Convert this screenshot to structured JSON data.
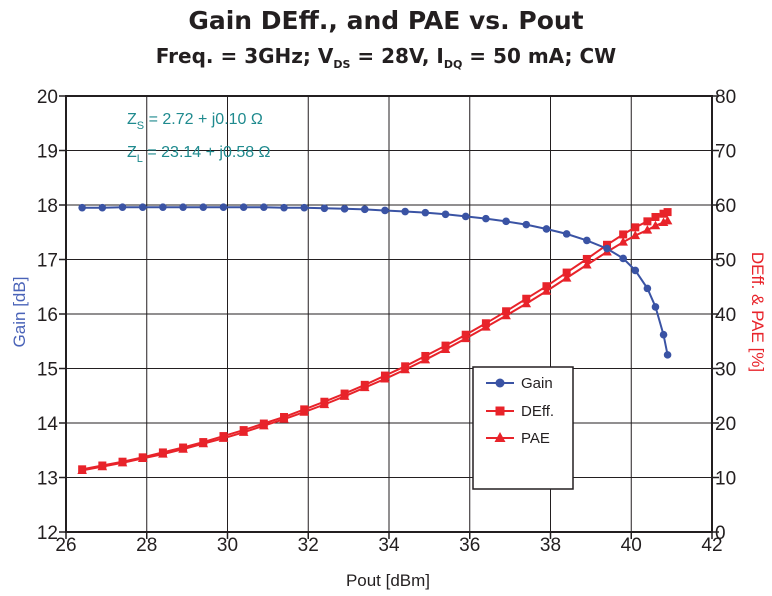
{
  "chart_data": {
    "type": "line",
    "title": "Gain DEff., and PAE vs. Pout",
    "subtitle": {
      "freq": "Freq. = 3GHz; ",
      "vds": "V",
      "vds_sub": "DS",
      "vds_val": " = 28V, ",
      "idq": "I",
      "idq_sub": "DQ",
      "idq_val": " = 50 mA; CW"
    },
    "xlabel": "Pout [dBm]",
    "ylabel_left": "Gain [dB]",
    "ylabel_right": "DEff. & PAE [%]",
    "xlim": [
      26,
      42
    ],
    "ylim_left": [
      12,
      20
    ],
    "ylim_right": [
      0,
      80
    ],
    "xticks": [
      "26",
      "28",
      "30",
      "32",
      "34",
      "36",
      "38",
      "40",
      "42"
    ],
    "yticks_left": [
      "12",
      "13",
      "14",
      "15",
      "16",
      "17",
      "18",
      "19",
      "20"
    ],
    "yticks_right": [
      "0",
      "10",
      "20",
      "30",
      "40",
      "50",
      "60",
      "70",
      "80"
    ],
    "grid": true,
    "legend_position": "lower-right",
    "annotations": [
      {
        "name": "zs",
        "main": "Z",
        "sub": "S",
        "value": " = 2.72 + j0.10 Ω"
      },
      {
        "name": "zl",
        "main": "Z",
        "sub": "L",
        "value": " = 23.14 + j0.58 Ω"
      }
    ],
    "series": [
      {
        "name": "Gain",
        "axis": "left",
        "color": "#3a53a4",
        "marker": "circle",
        "x": [
          26.4,
          26.9,
          27.4,
          27.9,
          28.4,
          28.9,
          29.4,
          29.9,
          30.4,
          30.9,
          31.4,
          31.9,
          32.4,
          32.9,
          33.4,
          33.9,
          34.4,
          34.9,
          35.4,
          35.9,
          36.4,
          36.9,
          37.4,
          37.9,
          38.4,
          38.9,
          39.4,
          39.8,
          40.1,
          40.4,
          40.6,
          40.8,
          40.9
        ],
        "y": [
          17.95,
          17.95,
          17.96,
          17.96,
          17.96,
          17.96,
          17.96,
          17.96,
          17.96,
          17.96,
          17.95,
          17.95,
          17.94,
          17.93,
          17.92,
          17.9,
          17.88,
          17.86,
          17.83,
          17.79,
          17.75,
          17.7,
          17.64,
          17.56,
          17.47,
          17.35,
          17.2,
          17.02,
          16.8,
          16.47,
          16.13,
          15.62,
          15.25
        ]
      },
      {
        "name": "DEff.",
        "axis": "right",
        "color": "#e8232a",
        "marker": "square",
        "x": [
          26.4,
          26.9,
          27.4,
          27.9,
          28.4,
          28.9,
          29.4,
          29.9,
          30.4,
          30.9,
          31.4,
          31.9,
          32.4,
          32.9,
          33.4,
          33.9,
          34.4,
          34.9,
          35.4,
          35.9,
          36.4,
          36.9,
          37.4,
          37.9,
          38.4,
          38.9,
          39.4,
          39.8,
          40.1,
          40.4,
          40.6,
          40.8,
          40.9
        ],
        "y": [
          11.5,
          12.2,
          12.9,
          13.7,
          14.6,
          15.5,
          16.5,
          17.6,
          18.7,
          19.9,
          21.1,
          22.5,
          23.9,
          25.4,
          27.0,
          28.7,
          30.4,
          32.3,
          34.2,
          36.2,
          38.3,
          40.5,
          42.8,
          45.1,
          47.6,
          50.1,
          52.7,
          54.6,
          55.9,
          57.0,
          57.8,
          58.4,
          58.7
        ]
      },
      {
        "name": "PAE",
        "axis": "right",
        "color": "#e8232a",
        "marker": "triangle",
        "x": [
          26.4,
          26.9,
          27.4,
          27.9,
          28.4,
          28.9,
          29.4,
          29.9,
          30.4,
          30.9,
          31.4,
          31.9,
          32.4,
          32.9,
          33.4,
          33.9,
          34.4,
          34.9,
          35.4,
          35.9,
          36.4,
          36.9,
          37.4,
          37.9,
          38.4,
          38.9,
          39.4,
          39.8,
          40.1,
          40.4,
          40.6,
          40.8,
          40.9
        ],
        "y": [
          11.3,
          12.0,
          12.7,
          13.5,
          14.3,
          15.2,
          16.2,
          17.2,
          18.3,
          19.5,
          20.7,
          22.0,
          23.4,
          24.9,
          26.5,
          28.1,
          29.8,
          31.6,
          33.5,
          35.5,
          37.6,
          39.7,
          41.9,
          44.2,
          46.6,
          49.0,
          51.4,
          53.2,
          54.4,
          55.4,
          56.2,
          56.8,
          57.1
        ]
      }
    ]
  }
}
